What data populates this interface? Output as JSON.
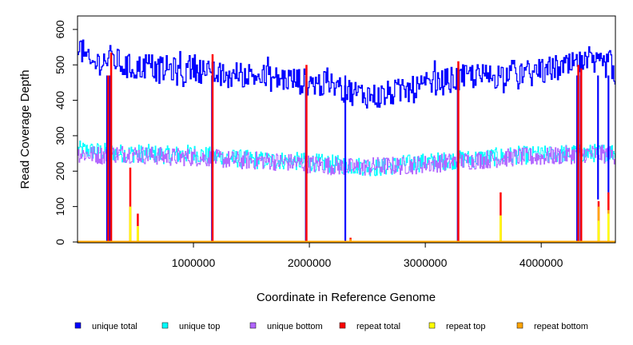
{
  "chart_data": {
    "type": "line",
    "title": "",
    "xlabel": "Coordinate in Reference Genome",
    "ylabel": "Read Coverage Depth",
    "xlim": [
      0,
      4640000
    ],
    "ylim": [
      0,
      620
    ],
    "xticks": [
      1000000,
      2000000,
      3000000,
      4000000
    ],
    "xtick_labels": [
      "1000000",
      "2000000",
      "3000000",
      "4000000"
    ],
    "yticks": [
      0,
      100,
      200,
      300,
      400,
      500,
      600
    ],
    "ytick_labels": [
      "0",
      "100",
      "200",
      "300",
      "400",
      "500",
      "600"
    ],
    "grid": false,
    "legend_position": "bottom",
    "series": [
      {
        "name": "unique total",
        "color": "#0000ff",
        "x": [
          0,
          100000,
          200000,
          300000,
          400000,
          500000,
          600000,
          700000,
          800000,
          900000,
          1000000,
          1100000,
          1200000,
          1300000,
          1400000,
          1500000,
          1600000,
          1700000,
          1800000,
          1900000,
          2000000,
          2100000,
          2200000,
          2300000,
          2400000,
          2500000,
          2600000,
          2700000,
          2800000,
          2900000,
          3000000,
          3100000,
          3200000,
          3300000,
          3400000,
          3500000,
          3600000,
          3700000,
          3800000,
          3900000,
          4000000,
          4100000,
          4200000,
          4300000,
          4400000,
          4500000,
          4600000,
          4640000
        ],
        "values": [
          560,
          500,
          510,
          520,
          495,
          490,
          500,
          485,
          490,
          470,
          495,
          480,
          470,
          465,
          475,
          470,
          465,
          460,
          460,
          455,
          450,
          445,
          440,
          430,
          420,
          415,
          410,
          420,
          425,
          430,
          440,
          450,
          455,
          460,
          470,
          465,
          470,
          475,
          480,
          475,
          480,
          490,
          490,
          500,
          500,
          495,
          505,
          440
        ],
        "dips": [
          [
            255000,
            0
          ],
          [
            280000,
            0
          ],
          [
            1160000,
            0
          ],
          [
            1970000,
            0
          ],
          [
            2310000,
            0
          ],
          [
            3280000,
            0
          ],
          [
            4310000,
            0
          ],
          [
            4340000,
            0
          ],
          [
            4490000,
            120
          ],
          [
            4580000,
            140
          ]
        ]
      },
      {
        "name": "unique top",
        "color": "#00ffff",
        "x": [
          0,
          200000,
          400000,
          600000,
          800000,
          1000000,
          1200000,
          1400000,
          1600000,
          1800000,
          2000000,
          2200000,
          2400000,
          2600000,
          2800000,
          3000000,
          3200000,
          3400000,
          3600000,
          3800000,
          4000000,
          4200000,
          4400000,
          4640000
        ],
        "values": [
          260,
          255,
          250,
          250,
          245,
          250,
          240,
          235,
          230,
          230,
          225,
          220,
          215,
          210,
          220,
          225,
          230,
          235,
          240,
          245,
          245,
          250,
          250,
          255
        ]
      },
      {
        "name": "unique bottom",
        "color": "#b266ff",
        "x": [
          0,
          200000,
          400000,
          600000,
          800000,
          1000000,
          1200000,
          1400000,
          1600000,
          1800000,
          2000000,
          2200000,
          2400000,
          2600000,
          2800000,
          3000000,
          3200000,
          3400000,
          3600000,
          3800000,
          4000000,
          4200000,
          4400000,
          4640000
        ],
        "values": [
          250,
          245,
          250,
          245,
          240,
          240,
          235,
          230,
          230,
          225,
          220,
          215,
          210,
          215,
          215,
          220,
          225,
          230,
          235,
          240,
          240,
          245,
          250,
          245
        ]
      },
      {
        "name": "repeat total",
        "color": "#ff0000",
        "spikes": [
          [
            265000,
            470
          ],
          [
            290000,
            535
          ],
          [
            455000,
            210
          ],
          [
            520000,
            80
          ],
          [
            1165000,
            530
          ],
          [
            1975000,
            500
          ],
          [
            2355000,
            12
          ],
          [
            3285000,
            510
          ],
          [
            3650000,
            140
          ],
          [
            4320000,
            500
          ],
          [
            4345000,
            490
          ],
          [
            4495000,
            115
          ],
          [
            4580000,
            140
          ]
        ]
      },
      {
        "name": "repeat top",
        "color": "#ffff00",
        "spikes": [
          [
            455000,
            100
          ],
          [
            520000,
            45
          ],
          [
            3650000,
            75
          ],
          [
            4495000,
            60
          ],
          [
            4580000,
            80
          ]
        ]
      },
      {
        "name": "repeat bottom",
        "color": "#ffa500",
        "spikes": [
          [
            455000,
            90
          ],
          [
            520000,
            42
          ],
          [
            2355000,
            8
          ],
          [
            3650000,
            72
          ],
          [
            4495000,
            100
          ],
          [
            4580000,
            90
          ]
        ]
      }
    ]
  }
}
